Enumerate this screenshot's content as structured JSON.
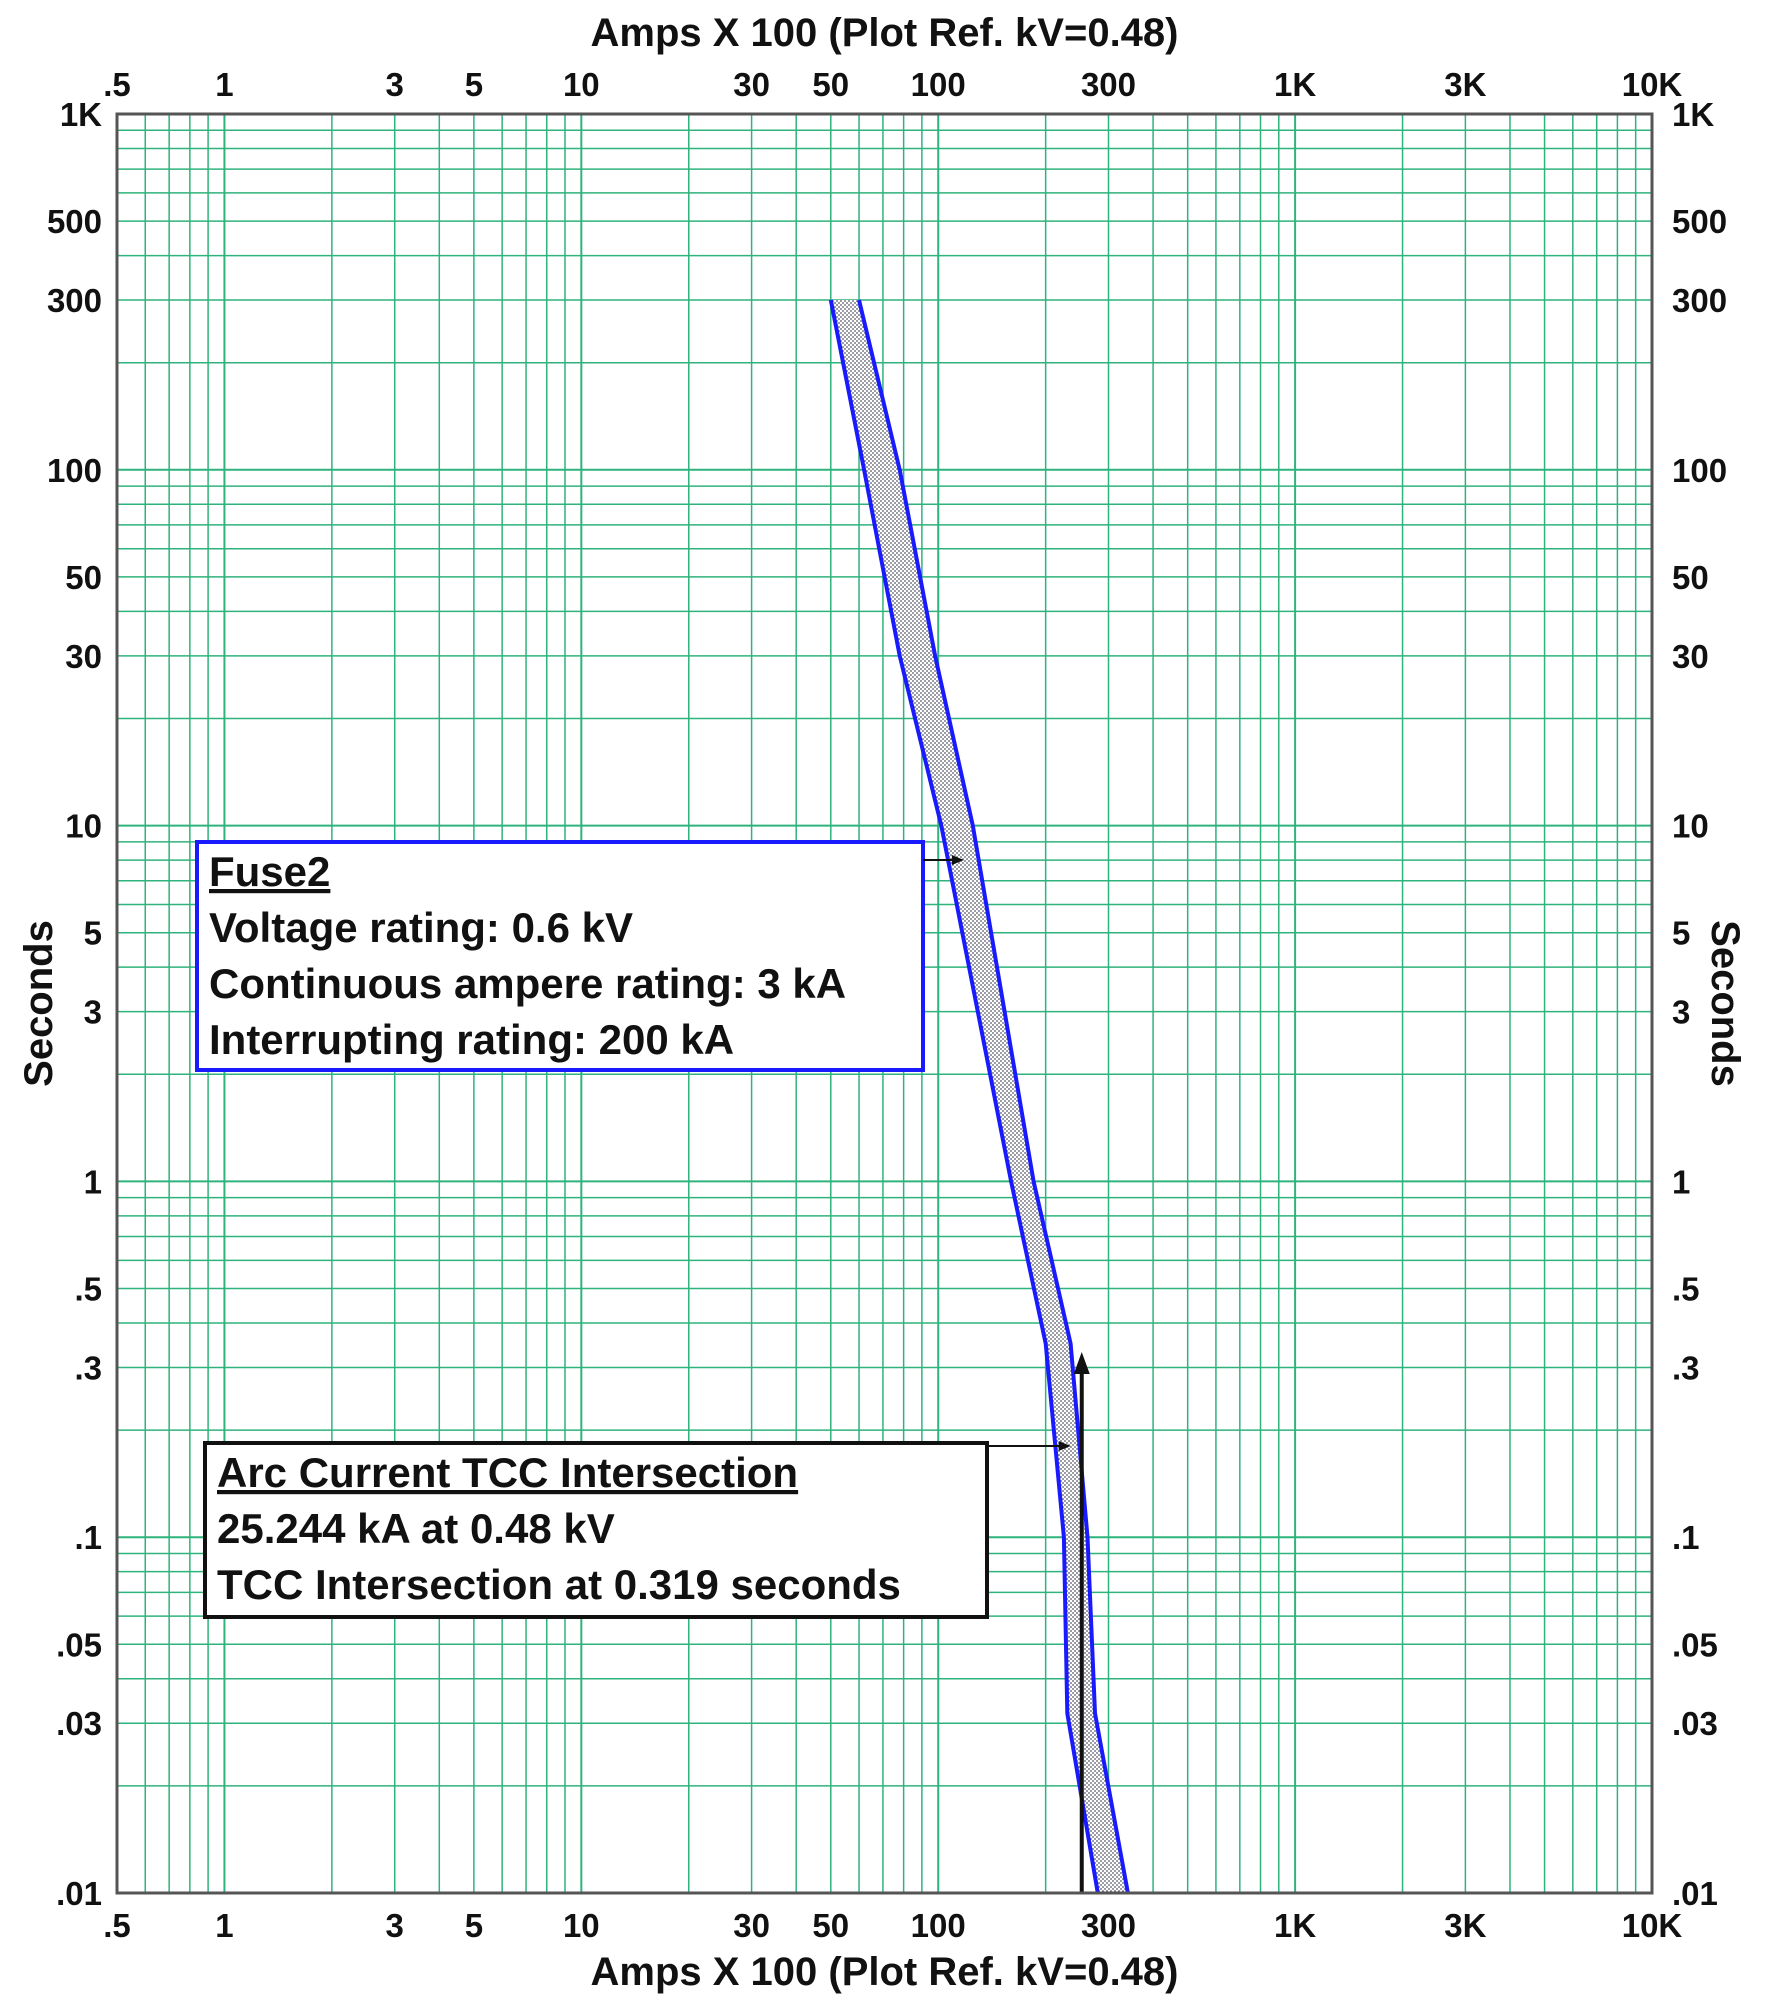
{
  "chart_data": {
    "type": "line",
    "title": "",
    "x_axis": {
      "label_top": "Amps  X  100 (Plot Ref. kV=0.48)",
      "label_bottom": "Amps  X  100 (Plot Ref. kV=0.48)",
      "scale": "log",
      "range": [
        0.5,
        10000
      ],
      "ticks": [
        {
          "value": 0.5,
          "label": ".5"
        },
        {
          "value": 1,
          "label": "1"
        },
        {
          "value": 3,
          "label": "3"
        },
        {
          "value": 5,
          "label": "5"
        },
        {
          "value": 10,
          "label": "10"
        },
        {
          "value": 30,
          "label": "30"
        },
        {
          "value": 50,
          "label": "50"
        },
        {
          "value": 100,
          "label": "100"
        },
        {
          "value": 300,
          "label": "300"
        },
        {
          "value": 1000,
          "label": "1K"
        },
        {
          "value": 3000,
          "label": "3K"
        },
        {
          "value": 10000,
          "label": "10K"
        }
      ]
    },
    "y_axis": {
      "label": "Seconds",
      "scale": "log",
      "range": [
        0.01,
        1000
      ],
      "ticks": [
        {
          "value": 1000,
          "label": "1K"
        },
        {
          "value": 500,
          "label": "500"
        },
        {
          "value": 300,
          "label": "300"
        },
        {
          "value": 100,
          "label": "100"
        },
        {
          "value": 50,
          "label": "50"
        },
        {
          "value": 30,
          "label": "30"
        },
        {
          "value": 10,
          "label": "10"
        },
        {
          "value": 5,
          "label": "5"
        },
        {
          "value": 3,
          "label": "3"
        },
        {
          "value": 1,
          "label": "1"
        },
        {
          "value": 0.5,
          "label": ".5"
        },
        {
          "value": 0.3,
          "label": ".3"
        },
        {
          "value": 0.1,
          "label": ".1"
        },
        {
          "value": 0.05,
          "label": ".05"
        },
        {
          "value": 0.03,
          "label": ".03"
        },
        {
          "value": 0.01,
          "label": ".01"
        }
      ]
    },
    "grid": true,
    "colors": {
      "grid": "#2fb37c",
      "curve": "#1a1aff",
      "band_fill": "#c8c8d8",
      "frame": "#555555",
      "text": "#111111"
    },
    "series": [
      {
        "role": "minimum-melt",
        "points": [
          [
            50,
            300
          ],
          [
            62,
            100
          ],
          [
            78,
            30
          ],
          [
            102,
            10
          ],
          [
            160,
            1.0
          ],
          [
            200,
            0.35
          ],
          [
            225,
            0.1
          ],
          [
            230,
            0.032
          ],
          [
            280,
            0.01
          ]
        ]
      },
      {
        "role": "total-clear",
        "points": [
          [
            60,
            300
          ],
          [
            78,
            100
          ],
          [
            98,
            30
          ],
          [
            125,
            10
          ],
          [
            185,
            1.0
          ],
          [
            235,
            0.35
          ],
          [
            262,
            0.1
          ],
          [
            275,
            0.032
          ],
          [
            340,
            0.01
          ]
        ]
      }
    ],
    "arc_current_marker": {
      "x": 252.44,
      "y_from": 0.01,
      "y_to": 0.319
    },
    "annotations": [
      {
        "title": "Fuse2",
        "lines": [
          "Voltage rating: 0.6 kV",
          "Continuous ampere rating: 3 kA",
          "Interrupting rating: 200 kA"
        ],
        "border_color": "#1a1aff",
        "arrow_to": [
          118,
          8
        ]
      },
      {
        "title": "Arc Current TCC Intersection",
        "lines": [
          "25.244 kA at 0.48 kV",
          "TCC Intersection at 0.319 seconds"
        ],
        "border_color": "#111111",
        "arrow_to": [
          235,
          0.18
        ]
      }
    ]
  }
}
